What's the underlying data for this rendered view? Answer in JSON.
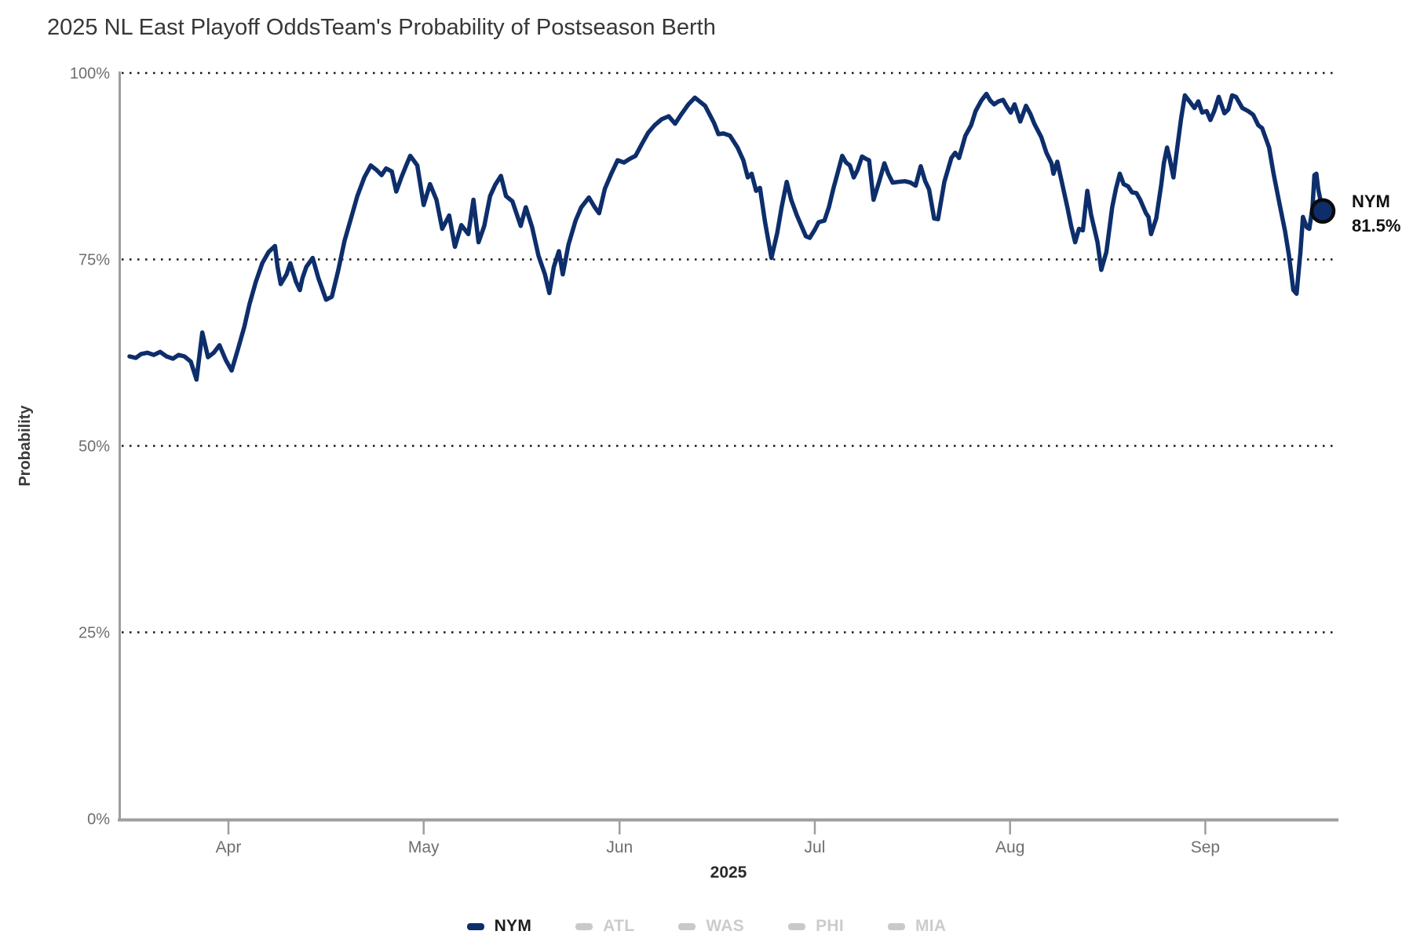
{
  "header": {
    "title": "2025 NL East Playoff Odds",
    "subtitle": "Team's Probability of Postseason Berth"
  },
  "chart_data": {
    "type": "line",
    "title": "2025 NL East Playoff Odds",
    "subtitle": "Team's Probability of Postseason Berth",
    "xlabel": "2025",
    "ylabel": "Probability",
    "ylim": [
      0,
      100
    ],
    "grid": "horizontal dotted lines at 25/50/75/100, legend bottom",
    "y_ticks": [
      {
        "value": 0,
        "label": "0%"
      },
      {
        "value": 25,
        "label": "25%"
      },
      {
        "value": 50,
        "label": "50%"
      },
      {
        "value": 75,
        "label": "75%"
      },
      {
        "value": 100,
        "label": "100%"
      }
    ],
    "x_axis": {
      "unit": "days from mid-March 2025",
      "total_days": 187
    },
    "x_ticks": [
      {
        "label": "Apr",
        "day": 15.5
      },
      {
        "label": "May",
        "day": 46.1
      },
      {
        "label": "Jun",
        "day": 76.8
      },
      {
        "label": "Jul",
        "day": 107.4
      },
      {
        "label": "Aug",
        "day": 138.0
      },
      {
        "label": "Sep",
        "day": 168.6
      }
    ],
    "series": [
      {
        "name": "NYM",
        "color": "#0d2e6b",
        "active": true,
        "points": [
          [
            0,
            62.0
          ],
          [
            1,
            61.8
          ],
          [
            1.8,
            62.3
          ],
          [
            2.8,
            62.5
          ],
          [
            3.8,
            62.2
          ],
          [
            4.8,
            62.6
          ],
          [
            5.8,
            62.0
          ],
          [
            6.8,
            61.7
          ],
          [
            7.7,
            62.2
          ],
          [
            8.6,
            62.0
          ],
          [
            9.6,
            61.3
          ],
          [
            10.5,
            58.9
          ],
          [
            11.4,
            65.2
          ],
          [
            12.3,
            61.9
          ],
          [
            13.2,
            62.5
          ],
          [
            14.1,
            63.5
          ],
          [
            15.1,
            61.5
          ],
          [
            16,
            60.1
          ],
          [
            17,
            63.0
          ],
          [
            18,
            66.0
          ],
          [
            18.8,
            69.0
          ],
          [
            19.8,
            72.0
          ],
          [
            20.8,
            74.5
          ],
          [
            21.8,
            76.0
          ],
          [
            22.8,
            76.8
          ],
          [
            23.2,
            74.0
          ],
          [
            23.7,
            71.7
          ],
          [
            24.6,
            73.0
          ],
          [
            25.2,
            74.5
          ],
          [
            26.1,
            72.0
          ],
          [
            26.7,
            70.9
          ],
          [
            27.1,
            72.5
          ],
          [
            27.7,
            74.0
          ],
          [
            28.7,
            75.2
          ],
          [
            29.6,
            72.5
          ],
          [
            30.8,
            69.6
          ],
          [
            31.7,
            70.0
          ],
          [
            32.7,
            73.5
          ],
          [
            33.7,
            77.5
          ],
          [
            34.7,
            80.5
          ],
          [
            35.7,
            83.5
          ],
          [
            36.8,
            86.0
          ],
          [
            37.8,
            87.6
          ],
          [
            38.7,
            87.0
          ],
          [
            39.5,
            86.3
          ],
          [
            40.2,
            87.2
          ],
          [
            41.1,
            86.8
          ],
          [
            41.8,
            84.1
          ],
          [
            42.6,
            86.0
          ],
          [
            43.3,
            87.5
          ],
          [
            44,
            88.9
          ],
          [
            45.1,
            87.6
          ],
          [
            46.1,
            82.3
          ],
          [
            47.1,
            85.1
          ],
          [
            48.1,
            83.0
          ],
          [
            49,
            79.1
          ],
          [
            50.1,
            80.9
          ],
          [
            51,
            76.7
          ],
          [
            52,
            79.6
          ],
          [
            53.1,
            78.4
          ],
          [
            53.9,
            83.0
          ],
          [
            54.7,
            77.3
          ],
          [
            55.6,
            79.5
          ],
          [
            56.5,
            83.5
          ],
          [
            57.3,
            85.0
          ],
          [
            58.2,
            86.2
          ],
          [
            59,
            83.5
          ],
          [
            60,
            82.8
          ],
          [
            61.3,
            79.5
          ],
          [
            62.1,
            82.0
          ],
          [
            63.1,
            79.3
          ],
          [
            64.1,
            75.5
          ],
          [
            65.1,
            73.0
          ],
          [
            65.8,
            70.5
          ],
          [
            66.5,
            74.0
          ],
          [
            67.3,
            76.1
          ],
          [
            67.9,
            73.0
          ],
          [
            68.8,
            77.0
          ],
          [
            69.9,
            80.2
          ],
          [
            70.8,
            82.0
          ],
          [
            72,
            83.3
          ],
          [
            72.9,
            82.0
          ],
          [
            73.6,
            81.2
          ],
          [
            74.5,
            84.5
          ],
          [
            75.5,
            86.5
          ],
          [
            76.5,
            88.3
          ],
          [
            77.5,
            88.0
          ],
          [
            78.4,
            88.5
          ],
          [
            79.3,
            88.9
          ],
          [
            80.3,
            90.5
          ],
          [
            81.3,
            92.0
          ],
          [
            82.3,
            93.0
          ],
          [
            83.4,
            93.8
          ],
          [
            84.5,
            94.2
          ],
          [
            85.5,
            93.2
          ],
          [
            86.5,
            94.5
          ],
          [
            87.6,
            95.8
          ],
          [
            88.6,
            96.7
          ],
          [
            90.2,
            95.6
          ],
          [
            91.6,
            93.3
          ],
          [
            92.3,
            91.8
          ],
          [
            93.1,
            91.9
          ],
          [
            94.1,
            91.6
          ],
          [
            95.3,
            90.0
          ],
          [
            96.2,
            88.3
          ],
          [
            96.9,
            86.0
          ],
          [
            97.5,
            86.5
          ],
          [
            98.2,
            84.2
          ],
          [
            98.8,
            84.6
          ],
          [
            99.6,
            80.0
          ],
          [
            100.6,
            75.2
          ],
          [
            101.5,
            78.5
          ],
          [
            102.2,
            82.0
          ],
          [
            103,
            85.4
          ],
          [
            103.7,
            83.0
          ],
          [
            104.6,
            80.9
          ],
          [
            105.3,
            79.5
          ],
          [
            106,
            78.1
          ],
          [
            106.6,
            77.9
          ],
          [
            107.4,
            79.0
          ],
          [
            108,
            80.0
          ],
          [
            108.9,
            80.2
          ],
          [
            109.6,
            82.0
          ],
          [
            110.3,
            84.5
          ],
          [
            111.1,
            87.0
          ],
          [
            111.7,
            88.9
          ],
          [
            112.3,
            88.0
          ],
          [
            112.9,
            87.6
          ],
          [
            113.5,
            86.0
          ],
          [
            114.1,
            87.0
          ],
          [
            114.8,
            88.8
          ],
          [
            115.4,
            88.5
          ],
          [
            115.9,
            88.3
          ],
          [
            116.6,
            83.0
          ],
          [
            117.5,
            85.5
          ],
          [
            118.3,
            87.9
          ],
          [
            118.9,
            86.5
          ],
          [
            119.6,
            85.3
          ],
          [
            120.5,
            85.4
          ],
          [
            121.5,
            85.5
          ],
          [
            122.4,
            85.3
          ],
          [
            123.2,
            84.9
          ],
          [
            124,
            87.5
          ],
          [
            124.7,
            85.5
          ],
          [
            125.3,
            84.4
          ],
          [
            126.1,
            80.5
          ],
          [
            126.7,
            80.4
          ],
          [
            127.7,
            85.4
          ],
          [
            128.8,
            88.6
          ],
          [
            129.4,
            89.3
          ],
          [
            130,
            88.6
          ],
          [
            131,
            91.6
          ],
          [
            131.9,
            93.0
          ],
          [
            132.6,
            94.9
          ],
          [
            133.5,
            96.3
          ],
          [
            134.3,
            97.2
          ],
          [
            134.9,
            96.3
          ],
          [
            135.5,
            95.8
          ],
          [
            136.2,
            96.2
          ],
          [
            136.9,
            96.4
          ],
          [
            137.5,
            95.5
          ],
          [
            138.1,
            94.7
          ],
          [
            138.7,
            95.8
          ],
          [
            139.6,
            93.5
          ],
          [
            140.5,
            95.6
          ],
          [
            141.2,
            94.5
          ],
          [
            141.8,
            93.2
          ],
          [
            142.9,
            91.4
          ],
          [
            143.7,
            89.3
          ],
          [
            144.5,
            87.9
          ],
          [
            144.8,
            86.5
          ],
          [
            145.4,
            88.1
          ],
          [
            146.1,
            85.4
          ],
          [
            147,
            81.9
          ],
          [
            147.6,
            79.4
          ],
          [
            148.2,
            77.3
          ],
          [
            148.8,
            79.1
          ],
          [
            149.4,
            78.9
          ],
          [
            150.1,
            84.2
          ],
          [
            150.7,
            81.0
          ],
          [
            151.7,
            77.3
          ],
          [
            152.3,
            73.6
          ],
          [
            153.1,
            76.0
          ],
          [
            154,
            82.0
          ],
          [
            154.6,
            84.5
          ],
          [
            155.2,
            86.5
          ],
          [
            155.8,
            85.1
          ],
          [
            156.5,
            84.8
          ],
          [
            157.1,
            84.0
          ],
          [
            157.8,
            83.9
          ],
          [
            158.4,
            83.0
          ],
          [
            159.3,
            81.2
          ],
          [
            159.7,
            80.7
          ],
          [
            160.1,
            78.4
          ],
          [
            160.9,
            80.5
          ],
          [
            161.7,
            85.1
          ],
          [
            162.1,
            87.9
          ],
          [
            162.6,
            90.0
          ],
          [
            163,
            88.6
          ],
          [
            163.6,
            86.0
          ],
          [
            164.2,
            90.0
          ],
          [
            164.8,
            93.9
          ],
          [
            165.4,
            97.0
          ],
          [
            166.3,
            96.0
          ],
          [
            166.9,
            95.3
          ],
          [
            167.5,
            96.2
          ],
          [
            168.1,
            94.7
          ],
          [
            168.8,
            94.9
          ],
          [
            169.4,
            93.7
          ],
          [
            170,
            94.9
          ],
          [
            170.7,
            96.8
          ],
          [
            171.6,
            94.6
          ],
          [
            172.2,
            95.1
          ],
          [
            172.8,
            97.0
          ],
          [
            173.4,
            96.8
          ],
          [
            174.4,
            95.3
          ],
          [
            175.3,
            94.9
          ],
          [
            176.1,
            94.4
          ],
          [
            176.9,
            93.0
          ],
          [
            177.5,
            92.6
          ],
          [
            178.6,
            90.0
          ],
          [
            179.3,
            86.5
          ],
          [
            180.2,
            82.6
          ],
          [
            181.1,
            78.8
          ],
          [
            181.7,
            75.6
          ],
          [
            182.4,
            70.9
          ],
          [
            182.9,
            70.4
          ],
          [
            183.5,
            76.0
          ],
          [
            183.9,
            80.7
          ],
          [
            184.5,
            79.3
          ],
          [
            184.9,
            79.1
          ],
          [
            185.4,
            82.0
          ],
          [
            185.7,
            86.3
          ],
          [
            186,
            86.5
          ],
          [
            186.3,
            84.4
          ],
          [
            187,
            81.5
          ]
        ]
      },
      {
        "name": "ATL",
        "active": false
      },
      {
        "name": "WAS",
        "active": false
      },
      {
        "name": "PHI",
        "active": false
      },
      {
        "name": "MIA",
        "active": false
      }
    ],
    "end_marker": {
      "series": "NYM",
      "value": 81.5,
      "label_line1": "NYM",
      "label_line2": "81.5%"
    }
  },
  "axis": {
    "xlabel": "2025",
    "ylabel": "Probability"
  },
  "end_label": {
    "line1": "NYM",
    "line2": "81.5%"
  },
  "legend": {
    "items": [
      {
        "label": "NYM",
        "active": true,
        "swatch_color": "#0d2e6b",
        "text_color": "#1c1c1c"
      },
      {
        "label": "ATL",
        "active": false,
        "swatch_color": "#c9c9c9",
        "text_color": "#cccccc"
      },
      {
        "label": "WAS",
        "active": false,
        "swatch_color": "#c9c9c9",
        "text_color": "#cccccc"
      },
      {
        "label": "PHI",
        "active": false,
        "swatch_color": "#c9c9c9",
        "text_color": "#cccccc"
      },
      {
        "label": "MIA",
        "active": false,
        "swatch_color": "#c9c9c9",
        "text_color": "#cccccc"
      }
    ]
  },
  "colors": {
    "line": "#0d2e6b",
    "axis": "#9e9e9e",
    "gridline": "#161616",
    "tick_label": "#6e6e6e",
    "title": "#373737",
    "marker_ring": "#0b0b0b",
    "end_label_text": "#111111"
  }
}
